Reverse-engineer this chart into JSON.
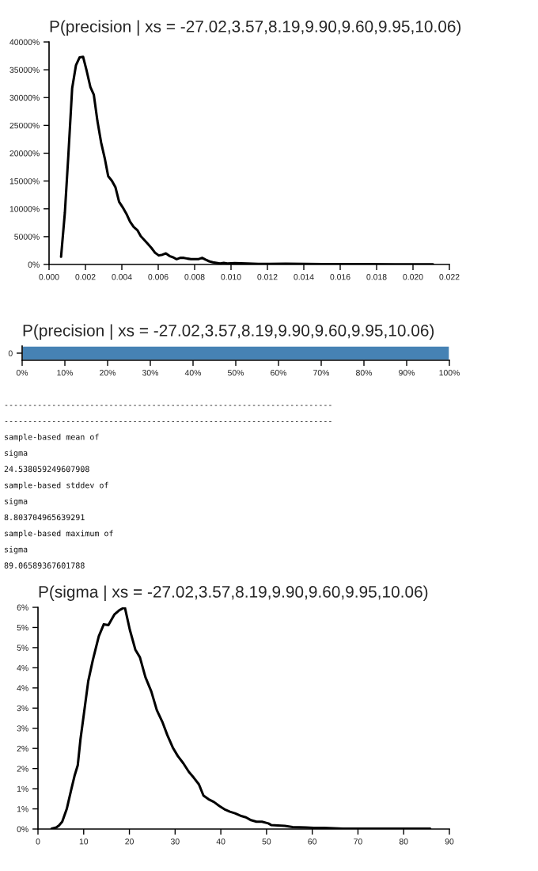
{
  "chart_data": [
    {
      "type": "line",
      "title": "P(precision | xs = -27.02,3.57,8.19,9.90,9.60,9.95,10.06)",
      "x": [
        0.00066,
        0.00087,
        0.00106,
        0.00127,
        0.00148,
        0.00168,
        0.00187,
        0.00207,
        0.00227,
        0.00246,
        0.00266,
        0.00286,
        0.00306,
        0.00325,
        0.00345,
        0.00365,
        0.00385,
        0.00404,
        0.00425,
        0.00445,
        0.00465,
        0.00485,
        0.00504,
        0.00524,
        0.00544,
        0.00563,
        0.00583,
        0.00603,
        0.00623,
        0.00642,
        0.00662,
        0.00682,
        0.00701,
        0.00721,
        0.00741,
        0.00761,
        0.0078,
        0.008,
        0.0082,
        0.00841,
        0.0086,
        0.0088,
        0.009,
        0.0092,
        0.0094,
        0.0096,
        0.0098,
        0.0102,
        0.0109,
        0.0115,
        0.0121,
        0.013,
        0.015,
        0.017,
        0.019,
        0.0211
      ],
      "series": [
        {
          "color": "#000000",
          "values": [
            1380,
            9360,
            19570,
            31690,
            35820,
            37240,
            37340,
            34770,
            31920,
            30500,
            25750,
            21950,
            19100,
            15870,
            15060,
            13870,
            11260,
            10310,
            9120,
            7700,
            6750,
            6180,
            5080,
            4370,
            3660,
            2950,
            2090,
            1620,
            1760,
            2000,
            1520,
            1280,
            950,
            1190,
            1190,
            1050,
            950,
            950,
            950,
            1190,
            860,
            570,
            380,
            290,
            190,
            290,
            190,
            240,
            190,
            100,
            100,
            150,
            80,
            50,
            30,
            20
          ]
        }
      ],
      "xlim": [
        0,
        0.022
      ],
      "xticks": [
        {
          "value": 0,
          "label": "0.000"
        },
        {
          "value": 0.002,
          "label": "0.002"
        },
        {
          "value": 0.004,
          "label": "0.004"
        },
        {
          "value": 0.006,
          "label": "0.006"
        },
        {
          "value": 0.008,
          "label": "0.008"
        },
        {
          "value": 0.01,
          "label": "0.010"
        },
        {
          "value": 0.012,
          "label": "0.012"
        },
        {
          "value": 0.014,
          "label": "0.014"
        },
        {
          "value": 0.016,
          "label": "0.016"
        },
        {
          "value": 0.018,
          "label": "0.018"
        },
        {
          "value": 0.02,
          "label": "0.020"
        },
        {
          "value": 0.022,
          "label": "0.022"
        }
      ],
      "ylim": [
        0,
        40000
      ],
      "yticks": [
        {
          "value": 0,
          "label": "0%"
        },
        {
          "value": 5000,
          "label": "5000%"
        },
        {
          "value": 10000,
          "label": "10000%"
        },
        {
          "value": 15000,
          "label": "15000%"
        },
        {
          "value": 20000,
          "label": "20000%"
        },
        {
          "value": 25000,
          "label": "25000%"
        },
        {
          "value": 30000,
          "label": "30000%"
        },
        {
          "value": 35000,
          "label": "35000%"
        },
        {
          "value": 40000,
          "label": "40000%"
        }
      ]
    },
    {
      "type": "bar",
      "orientation": "horizontal",
      "title": "P(precision | xs = -27.02,3.57,8.19,9.90,9.60,9.95,10.06)",
      "categories": [
        "0"
      ],
      "values": [
        100
      ],
      "color": "#4682b4",
      "xlim": [
        0,
        100
      ],
      "xticks": [
        {
          "value": 0,
          "label": "0%"
        },
        {
          "value": 10,
          "label": "10%"
        },
        {
          "value": 20,
          "label": "20%"
        },
        {
          "value": 30,
          "label": "30%"
        },
        {
          "value": 40,
          "label": "40%"
        },
        {
          "value": 50,
          "label": "50%"
        },
        {
          "value": 60,
          "label": "60%"
        },
        {
          "value": 70,
          "label": "70%"
        },
        {
          "value": 80,
          "label": "80%"
        },
        {
          "value": 90,
          "label": "90%"
        },
        {
          "value": 100,
          "label": "100%"
        }
      ]
    },
    {
      "type": "other",
      "annotations": [
        "---------------------------------------------------------------------",
        "---------------------------------------------------------------------",
        "sample-based mean of",
        "sigma",
        "24.538059249607908",
        "sample-based stddev of",
        "sigma",
        "8.803704965639291",
        "sample-based maximum of",
        "sigma",
        "89.06589367601788"
      ]
    },
    {
      "type": "line",
      "title": "P(sigma | xs = -27.02,3.57,8.19,9.90,9.60,9.95,10.06)",
      "x": [
        3.0,
        4.0,
        4.6,
        5.3,
        6.3,
        7.3,
        8.0,
        8.7,
        9.3,
        10.0,
        11.0,
        12.0,
        13.3,
        14.4,
        15.4,
        16.7,
        17.8,
        19.0,
        20.1,
        21.3,
        22.3,
        23.5,
        24.8,
        26.0,
        27.2,
        28.3,
        29.5,
        30.6,
        31.8,
        33.0,
        34.1,
        35.2,
        36.2,
        37.3,
        38.5,
        39.7,
        40.8,
        42.0,
        43.1,
        44.3,
        45.5,
        46.6,
        47.8,
        49.0,
        50.4,
        51.0,
        54.0,
        55.7,
        58.6,
        60.3,
        62.6,
        66.7,
        72.4,
        77.0,
        81.1,
        85.8
      ],
      "series": [
        {
          "color": "#000000",
          "values": [
            0.01,
            0.04,
            0.09,
            0.18,
            0.5,
            0.99,
            1.32,
            1.58,
            2.23,
            2.82,
            3.67,
            4.19,
            4.78,
            5.08,
            5.06,
            5.32,
            5.43,
            5.5,
            4.94,
            4.45,
            4.26,
            3.77,
            3.41,
            2.95,
            2.66,
            2.33,
            2.02,
            1.81,
            1.63,
            1.42,
            1.27,
            1.11,
            0.83,
            0.74,
            0.67,
            0.57,
            0.49,
            0.43,
            0.39,
            0.33,
            0.29,
            0.22,
            0.18,
            0.18,
            0.14,
            0.1,
            0.08,
            0.05,
            0.04,
            0.03,
            0.03,
            0.01,
            0.01,
            0.01,
            0.01,
            0.01
          ]
        }
      ],
      "xlim": [
        0,
        90
      ],
      "xticks": [
        0,
        10,
        20,
        30,
        40,
        50,
        60,
        70,
        80,
        90
      ],
      "ylim": [
        0,
        5.5
      ],
      "yticks": [
        {
          "value": 0,
          "label": "0%"
        },
        {
          "value": 0.5,
          "label": "1%"
        },
        {
          "value": 1,
          "label": "1%"
        },
        {
          "value": 1.5,
          "label": "2%"
        },
        {
          "value": 2,
          "label": "2%"
        },
        {
          "value": 2.5,
          "label": "3%"
        },
        {
          "value": 3,
          "label": "3%"
        },
        {
          "value": 3.5,
          "label": "4%"
        },
        {
          "value": 4,
          "label": "4%"
        },
        {
          "value": 4.5,
          "label": "5%"
        },
        {
          "value": 5,
          "label": "5%"
        },
        {
          "value": 5.5,
          "label": "6%"
        }
      ]
    }
  ]
}
